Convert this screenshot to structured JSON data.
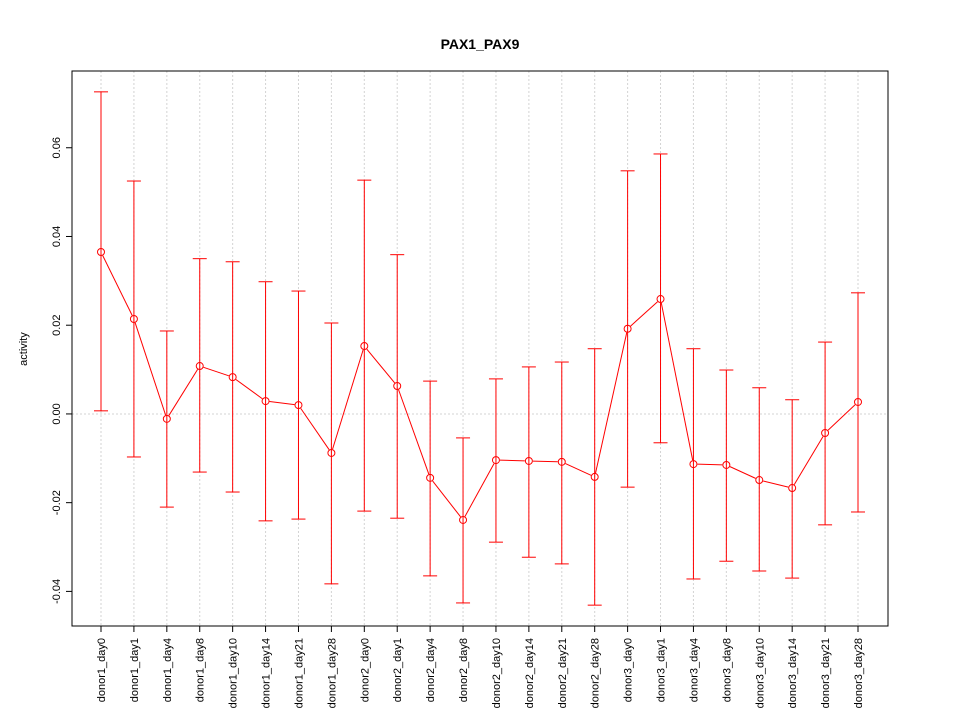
{
  "chart_data": {
    "type": "line",
    "title": "PAX1_PAX9",
    "xlabel": "",
    "ylabel": "activity",
    "ylim": [
      -0.0478,
      0.0773
    ],
    "yticks": [
      -0.04,
      -0.02,
      0.0,
      0.02,
      0.04,
      0.06
    ],
    "ytick_labels": [
      "-0.04",
      "-0.02",
      "0.00",
      "0.02",
      "0.04",
      "0.06"
    ],
    "grid": true,
    "reference_line": 0,
    "series_color": "#ff0000",
    "categories": [
      "donor1_day0",
      "donor1_day1",
      "donor1_day4",
      "donor1_day8",
      "donor1_day10",
      "donor1_day14",
      "donor1_day21",
      "donor1_day28",
      "donor2_day0",
      "donor2_day1",
      "donor2_day4",
      "donor2_day8",
      "donor2_day10",
      "donor2_day14",
      "donor2_day21",
      "donor2_day28",
      "donor3_day0",
      "donor3_day1",
      "donor3_day4",
      "donor3_day8",
      "donor3_day10",
      "donor3_day14",
      "donor3_day21",
      "donor3_day28"
    ],
    "values": [
      0.0365,
      0.0214,
      -0.0011,
      0.0108,
      0.0083,
      0.0029,
      0.002,
      -0.0088,
      0.0153,
      0.0063,
      -0.0144,
      -0.0239,
      -0.0104,
      -0.0106,
      -0.0108,
      -0.0142,
      0.0192,
      0.0259,
      -0.0113,
      -0.0115,
      -0.0149,
      -0.0167,
      -0.0043,
      0.0027
    ],
    "upper": [
      0.0726,
      0.0525,
      0.0187,
      0.035,
      0.0343,
      0.0298,
      0.0277,
      0.0205,
      0.0527,
      0.0359,
      0.0074,
      -0.0054,
      0.0079,
      0.0106,
      0.0117,
      0.0147,
      0.0548,
      0.0586,
      0.0147,
      0.0099,
      0.0059,
      0.0032,
      0.0162,
      0.0273
    ],
    "lower": [
      0.0007,
      -0.0097,
      -0.021,
      -0.0131,
      -0.0176,
      -0.0241,
      -0.0237,
      -0.0383,
      -0.0219,
      -0.0235,
      -0.0365,
      -0.0426,
      -0.0289,
      -0.0323,
      -0.0338,
      -0.0431,
      -0.0165,
      -0.0065,
      -0.0372,
      -0.0332,
      -0.0354,
      -0.037,
      -0.025,
      -0.0221
    ]
  }
}
